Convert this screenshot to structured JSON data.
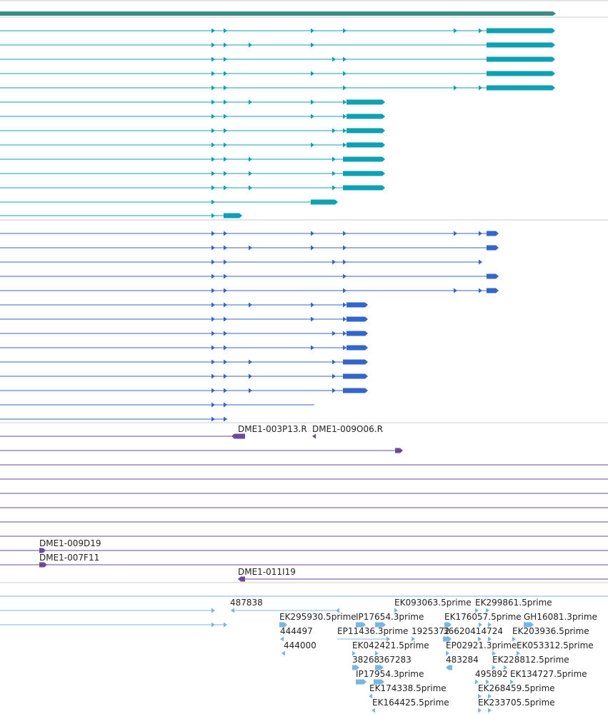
{
  "colors": {
    "gene": "#3c8c8c",
    "transcript_teal": "#0ea0b4",
    "transcript_blue": "#3366cc",
    "clone": "#6a4a9a",
    "est": "#7ab7e0",
    "divider": "#cccccc",
    "label": "#222222"
  },
  "tracks": [
    {
      "name": "gene-track",
      "color": "gene",
      "rows": 1
    },
    {
      "name": "transcript-teal-track",
      "color": "transcript_teal",
      "rows": 14
    },
    {
      "name": "transcript-blue-track",
      "color": "transcript_blue",
      "rows": 14
    },
    {
      "name": "clone-track",
      "color": "clone",
      "rows": 11
    },
    {
      "name": "est-track",
      "color": "est",
      "rows": 8
    }
  ],
  "clones": {
    "labels": [
      "DME1-003P13.R",
      "DME1-009O06.R",
      "DME1-009D19",
      "DME1-007F11",
      "DME1-011I19"
    ]
  },
  "ests": {
    "labels": [
      "487838",
      "EK093063.5prime",
      "EK299861.5prime",
      "EK295930.5prime",
      "IP17654.3prime",
      "EK176057.5prime",
      "GH16081.3prime",
      "444497",
      "EP11436.3prime",
      "1925372",
      "36620414724",
      "EK203936.5prime",
      "444000",
      "EK042421.5prime",
      "EP02921.3prime",
      "EK053312.5prime",
      "38268",
      "367283",
      "483284",
      "EK228812.5prime",
      "IP17954.3prime",
      "495892",
      "EK134727.5prime",
      "EK174338.5prime",
      "EK268459.5prime",
      "EK164425.5prime",
      "EK233705.5prime"
    ]
  }
}
